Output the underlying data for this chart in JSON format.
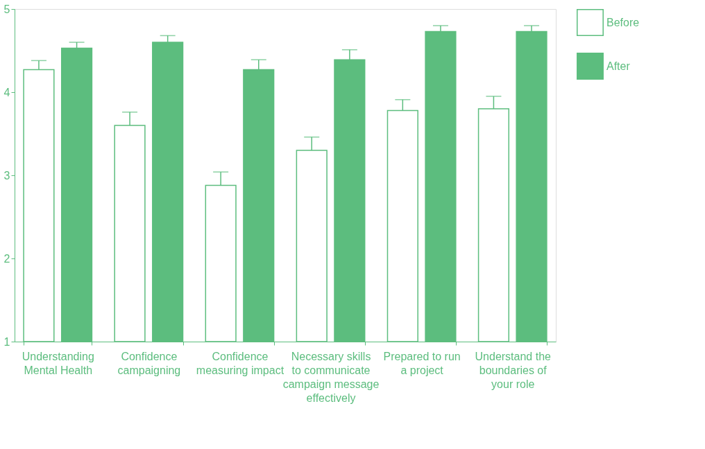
{
  "chart_data": {
    "type": "bar",
    "categories": [
      "Understanding Mental Health",
      "Confidence campaigning",
      "Confidence measuring impact",
      "Necessary skills to communicate campaign message effectively",
      "Prepared to run a project",
      "Understand the boundaries of your role"
    ],
    "series": [
      {
        "name": "Before",
        "color": "#5cbd7e",
        "values": [
          4.27,
          3.6,
          2.88,
          3.3,
          3.78,
          3.8
        ],
        "errors": [
          [
            4.27,
            4.38
          ],
          [
            3.6,
            3.76
          ],
          [
            2.88,
            3.04
          ],
          [
            3.3,
            3.46
          ],
          [
            3.78,
            3.91
          ],
          [
            3.8,
            3.95
          ]
        ]
      },
      {
        "name": "After",
        "color": "#5cbd7e",
        "values": [
          4.53,
          4.6,
          4.27,
          4.39,
          4.73,
          4.73
        ],
        "errors": [
          [
            4.53,
            4.6
          ],
          [
            4.6,
            4.68
          ],
          [
            4.27,
            4.39
          ],
          [
            4.39,
            4.51
          ],
          [
            4.73,
            4.8
          ],
          [
            4.73,
            4.8
          ]
        ]
      }
    ],
    "ylim": [
      1,
      5
    ],
    "yticks": [
      1,
      2,
      3,
      4,
      5
    ],
    "grid": false,
    "legend": "right"
  }
}
